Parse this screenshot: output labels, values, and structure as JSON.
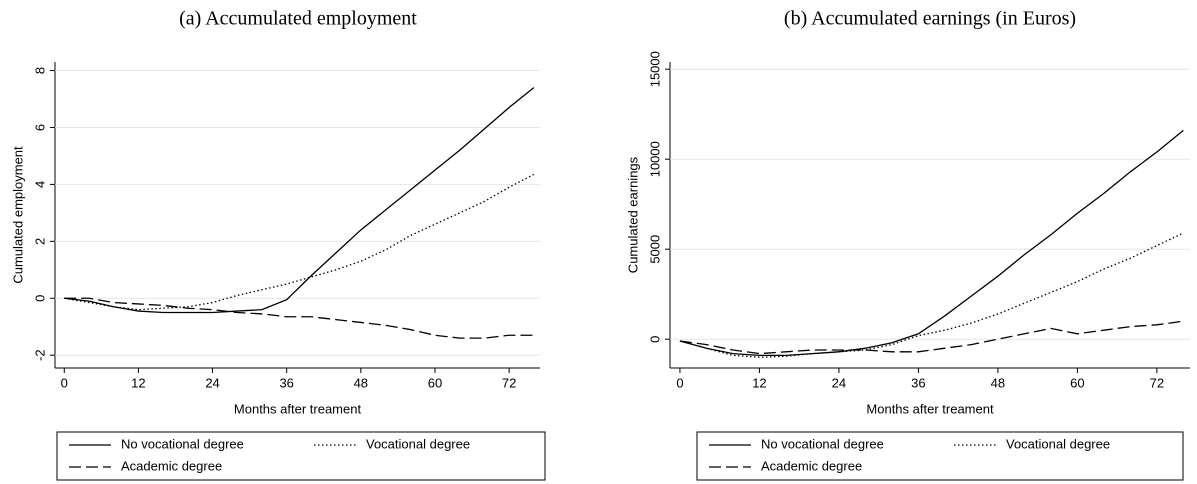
{
  "chart_data": [
    {
      "type": "line",
      "title": "(a) Accumulated employment",
      "xlabel": "Months after treament",
      "ylabel": "Cumulated employment",
      "x": [
        0,
        4,
        8,
        12,
        16,
        20,
        24,
        28,
        32,
        36,
        40,
        44,
        48,
        52,
        56,
        60,
        64,
        68,
        72,
        76
      ],
      "xlim": [
        -1.5,
        77
      ],
      "ylim": [
        -2.45,
        8.3
      ],
      "xticks": [
        0,
        12,
        24,
        36,
        48,
        60,
        72
      ],
      "yticks": [
        -2,
        0,
        2,
        4,
        6,
        8
      ],
      "series": [
        {
          "name": "No vocational degree",
          "color": "#000000",
          "linestyle": "solid",
          "values": [
            0,
            -0.1,
            -0.3,
            -0.45,
            -0.5,
            -0.5,
            -0.5,
            -0.45,
            -0.4,
            -0.05,
            0.8,
            1.6,
            2.4,
            3.1,
            3.8,
            4.5,
            5.2,
            5.95,
            6.7,
            7.4
          ]
        },
        {
          "name": "Vocational degree",
          "color": "#000000",
          "linestyle": "dotted",
          "values": [
            0,
            -0.15,
            -0.3,
            -0.4,
            -0.35,
            -0.3,
            -0.15,
            0.1,
            0.3,
            0.5,
            0.75,
            1.0,
            1.3,
            1.7,
            2.2,
            2.6,
            3.0,
            3.4,
            3.9,
            4.35
          ]
        },
        {
          "name": "Academic degree",
          "color": "#000000",
          "linestyle": "dashed",
          "values": [
            0,
            0,
            -0.15,
            -0.2,
            -0.25,
            -0.35,
            -0.4,
            -0.5,
            -0.55,
            -0.65,
            -0.65,
            -0.75,
            -0.85,
            -0.95,
            -1.1,
            -1.3,
            -1.4,
            -1.4,
            -1.3,
            -1.3
          ]
        }
      ]
    },
    {
      "type": "line",
      "title": "(b) Accumulated earnings (in Euros)",
      "xlabel": "Months after treament",
      "ylabel": "Cumulated earnings",
      "x": [
        0,
        4,
        8,
        12,
        16,
        20,
        24,
        28,
        32,
        36,
        40,
        44,
        48,
        52,
        56,
        60,
        64,
        68,
        72,
        76
      ],
      "xlim": [
        -1.5,
        77
      ],
      "ylim": [
        -1600,
        15400
      ],
      "xticks": [
        0,
        12,
        24,
        36,
        48,
        60,
        72
      ],
      "yticks": [
        0,
        5000,
        10000,
        15000
      ],
      "series": [
        {
          "name": "No vocational degree",
          "color": "#000000",
          "linestyle": "solid",
          "values": [
            -100,
            -500,
            -800,
            -900,
            -900,
            -800,
            -700,
            -500,
            -200,
            300,
            1300,
            2400,
            3500,
            4700,
            5800,
            7000,
            8100,
            9300,
            10400,
            11600
          ]
        },
        {
          "name": "Vocational degree",
          "color": "#000000",
          "linestyle": "dotted",
          "values": [
            -100,
            -500,
            -900,
            -1000,
            -950,
            -800,
            -700,
            -600,
            -300,
            200,
            500,
            900,
            1400,
            2000,
            2600,
            3200,
            3900,
            4500,
            5200,
            5900
          ]
        },
        {
          "name": "Academic degree",
          "color": "#000000",
          "linestyle": "dashed",
          "values": [
            -100,
            -300,
            -600,
            -800,
            -700,
            -600,
            -600,
            -600,
            -700,
            -700,
            -500,
            -300,
            0,
            300,
            600,
            300,
            500,
            700,
            800,
            1000
          ]
        }
      ]
    }
  ]
}
